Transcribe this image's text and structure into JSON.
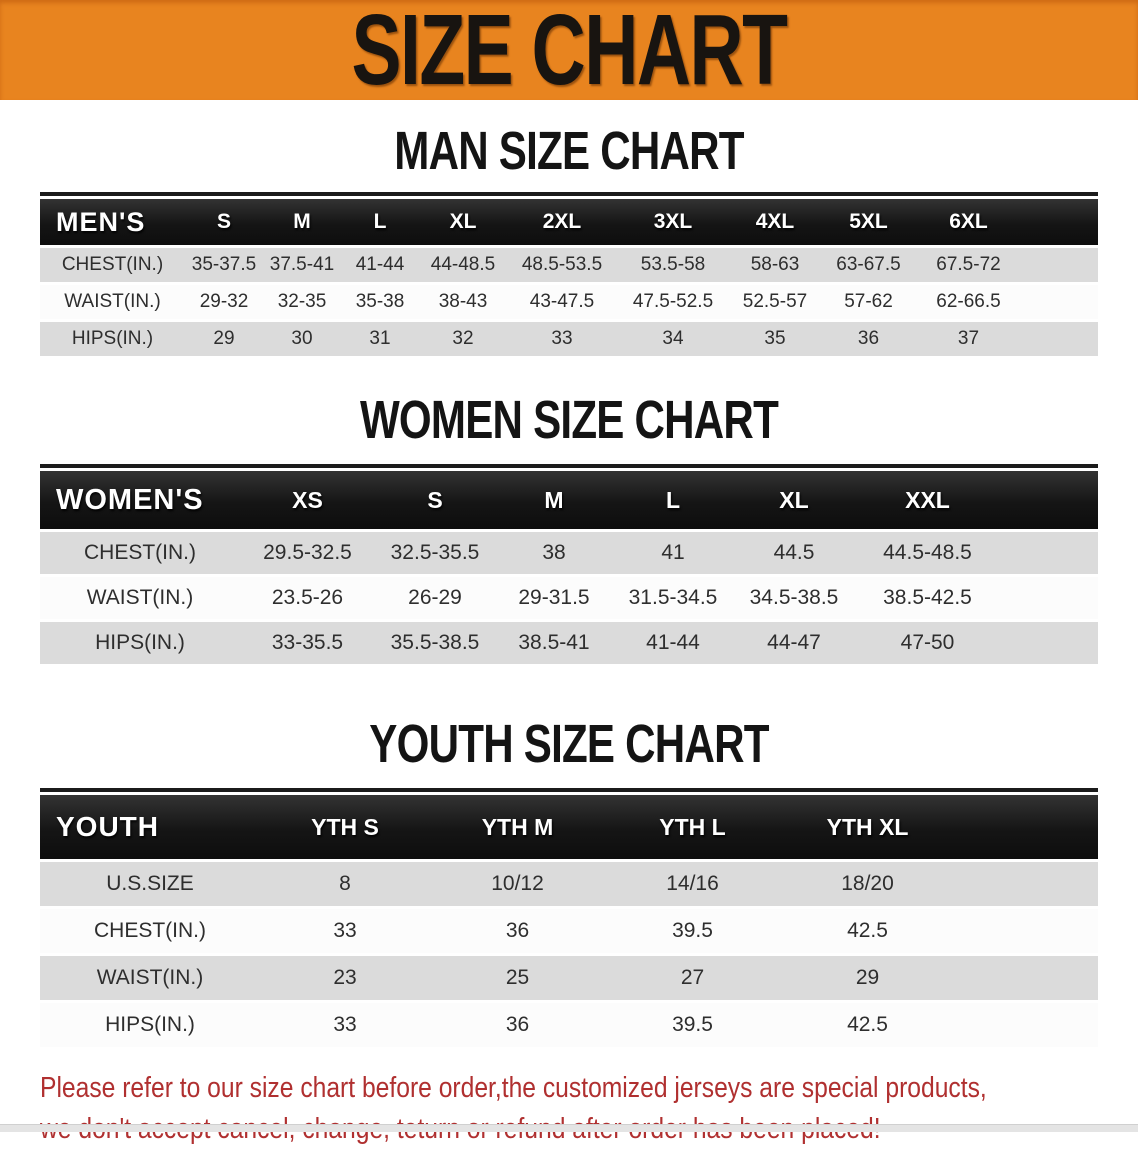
{
  "banner": {
    "title": "SIZE CHART",
    "bg_color": "#e8841f",
    "text_color": "#181410"
  },
  "men": {
    "heading": "MAN SIZE CHART",
    "table": {
      "header": [
        "MEN'S",
        "S",
        "M",
        "L",
        "XL",
        "2XL",
        "3XL",
        "4XL",
        "5XL",
        "6XL"
      ],
      "rows": [
        [
          "CHEST(IN.)",
          "35-37.5",
          "37.5-41",
          "41-44",
          "44-48.5",
          "48.5-53.5",
          "53.5-58",
          "58-63",
          "63-67.5",
          "67.5-72"
        ],
        [
          "WAIST(IN.)",
          "29-32",
          "32-35",
          "35-38",
          "38-43",
          "43-47.5",
          "47.5-52.5",
          "52.5-57",
          "57-62",
          "62-66.5"
        ],
        [
          "HIPS(IN.)",
          "29",
          "30",
          "31",
          "32",
          "33",
          "34",
          "35",
          "36",
          "37"
        ]
      ]
    }
  },
  "women": {
    "heading": "WOMEN SIZE CHART",
    "table": {
      "header": [
        "WOMEN'S",
        "XS",
        "S",
        "M",
        "L",
        "XL",
        "XXL"
      ],
      "rows": [
        [
          "CHEST(IN.)",
          "29.5-32.5",
          "32.5-35.5",
          "38",
          "41",
          "44.5",
          "44.5-48.5"
        ],
        [
          "WAIST(IN.)",
          "23.5-26",
          "26-29",
          "29-31.5",
          "31.5-34.5",
          "34.5-38.5",
          "38.5-42.5"
        ],
        [
          "HIPS(IN.)",
          "33-35.5",
          "35.5-38.5",
          "38.5-41",
          "41-44",
          "44-47",
          "47-50"
        ]
      ]
    }
  },
  "youth": {
    "heading": "YOUTH SIZE CHART",
    "table": {
      "header": [
        "YOUTH",
        "YTH S",
        "YTH M",
        "YTH L",
        "YTH XL"
      ],
      "rows": [
        [
          "U.S.SIZE",
          "8",
          "10/12",
          "14/16",
          "18/20"
        ],
        [
          "CHEST(IN.)",
          "33",
          "36",
          "39.5",
          "42.5"
        ],
        [
          "WAIST(IN.)",
          "23",
          "25",
          "27",
          "29"
        ],
        [
          "HIPS(IN.)",
          "33",
          "36",
          "39.5",
          "42.5"
        ]
      ]
    }
  },
  "disclaimer": {
    "line1": "Please refer to our size chart before order,the customized jerseys are special products,",
    "line2": "we don't accept cancel, change, teturn or refund after order has been placed!",
    "color": "#b03030"
  },
  "colors": {
    "header_bar": "#1b1b1b",
    "row_gray": "#dbdbdb",
    "row_white": "#fcfcfc"
  }
}
